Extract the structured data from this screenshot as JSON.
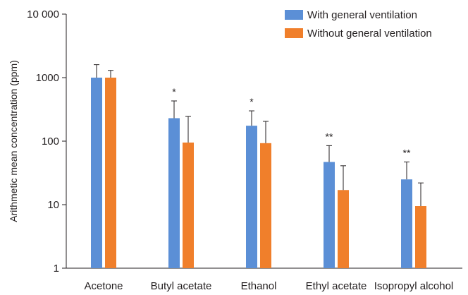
{
  "chart_data": {
    "type": "bar",
    "y_scale": "log",
    "ylabel": "Arithmetic mean concentration (ppm)",
    "xlabel": "",
    "ylim": [
      1,
      10000
    ],
    "yticks": [
      {
        "value": 1,
        "label": "1"
      },
      {
        "value": 10,
        "label": "10"
      },
      {
        "value": 100,
        "label": "100"
      },
      {
        "value": 1000,
        "label": "1000"
      },
      {
        "value": 10000,
        "label": "10 000"
      }
    ],
    "categories": [
      "Acetone",
      "Butyl acetate",
      "Ethanol",
      "Ethyl acetate",
      "Isopropyl alcohol"
    ],
    "series": [
      {
        "name": "With general ventilation",
        "color": "#5b8fd6",
        "values": [
          1000,
          230,
          175,
          47,
          25
        ],
        "error_upper": [
          1600,
          430,
          300,
          85,
          47
        ]
      },
      {
        "name": "Without general ventilation",
        "color": "#f07f2b",
        "values": [
          1000,
          95,
          93,
          17,
          9.5
        ],
        "error_upper": [
          1300,
          245,
          205,
          41,
          22
        ]
      }
    ],
    "significance": [
      "",
      "*",
      "*",
      "**",
      "**"
    ],
    "legend_position": "top-right",
    "grid": false
  }
}
